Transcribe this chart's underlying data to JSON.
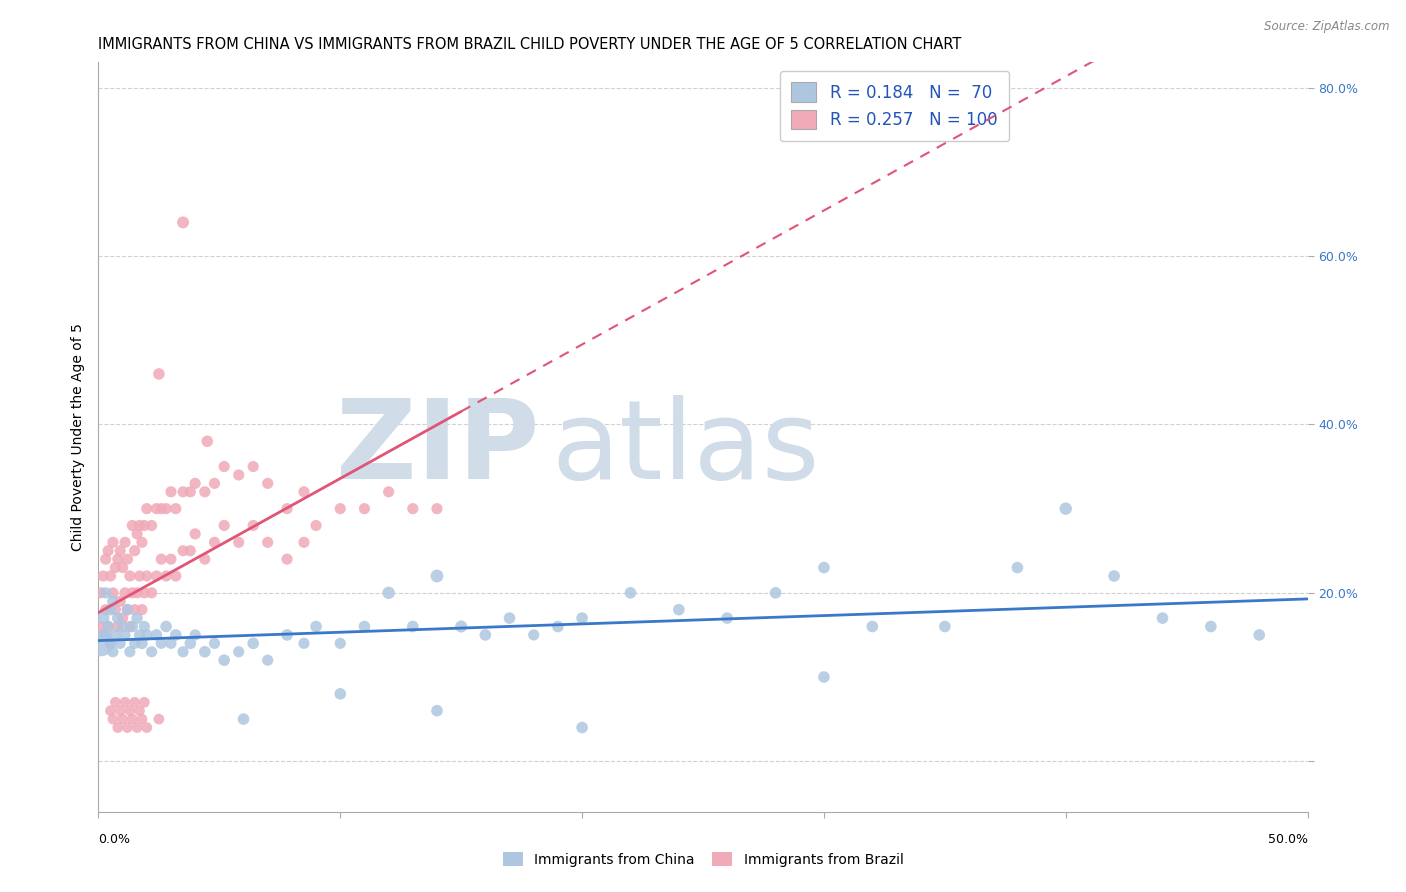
{
  "title": "IMMIGRANTS FROM CHINA VS IMMIGRANTS FROM BRAZIL CHILD POVERTY UNDER THE AGE OF 5 CORRELATION CHART",
  "source": "Source: ZipAtlas.com",
  "ylabel": "Child Poverty Under the Age of 5",
  "legend_label_china": "Immigrants from China",
  "legend_label_brazil": "Immigrants from Brazil",
  "color_china_fill": "#aec6e0",
  "color_brazil_fill": "#f0aab8",
  "color_china_line": "#3a78c9",
  "color_brazil_line": "#e05575",
  "R_china": 0.184,
  "N_china": 70,
  "R_brazil": 0.257,
  "N_brazil": 100,
  "xlim": [
    0.0,
    0.5
  ],
  "ylim": [
    -0.06,
    0.83
  ],
  "grid_color": "#cccccc",
  "bg_color": "#ffffff",
  "watermark_color": "#d0dce8",
  "title_fontsize": 10.5,
  "axis_label_fontsize": 10,
  "tick_fontsize": 9,
  "legend_fontsize": 12,
  "china_x": [
    0.001,
    0.002,
    0.003,
    0.003,
    0.004,
    0.005,
    0.005,
    0.006,
    0.006,
    0.007,
    0.008,
    0.009,
    0.01,
    0.011,
    0.012,
    0.013,
    0.014,
    0.015,
    0.016,
    0.017,
    0.018,
    0.019,
    0.02,
    0.022,
    0.024,
    0.026,
    0.028,
    0.03,
    0.032,
    0.035,
    0.038,
    0.04,
    0.044,
    0.048,
    0.052,
    0.058,
    0.064,
    0.07,
    0.078,
    0.085,
    0.09,
    0.1,
    0.11,
    0.12,
    0.13,
    0.14,
    0.15,
    0.16,
    0.17,
    0.18,
    0.19,
    0.2,
    0.22,
    0.24,
    0.26,
    0.28,
    0.3,
    0.32,
    0.35,
    0.38,
    0.4,
    0.42,
    0.44,
    0.46,
    0.48,
    0.3,
    0.2,
    0.14,
    0.1,
    0.06
  ],
  "china_y": [
    0.14,
    0.17,
    0.15,
    0.2,
    0.16,
    0.14,
    0.18,
    0.13,
    0.19,
    0.15,
    0.17,
    0.14,
    0.16,
    0.15,
    0.18,
    0.13,
    0.16,
    0.14,
    0.17,
    0.15,
    0.14,
    0.16,
    0.15,
    0.13,
    0.15,
    0.14,
    0.16,
    0.14,
    0.15,
    0.13,
    0.14,
    0.15,
    0.13,
    0.14,
    0.12,
    0.13,
    0.14,
    0.12,
    0.15,
    0.14,
    0.16,
    0.14,
    0.16,
    0.2,
    0.16,
    0.22,
    0.16,
    0.15,
    0.17,
    0.15,
    0.16,
    0.17,
    0.2,
    0.18,
    0.17,
    0.2,
    0.23,
    0.16,
    0.16,
    0.23,
    0.3,
    0.22,
    0.17,
    0.16,
    0.15,
    0.1,
    0.04,
    0.06,
    0.08,
    0.05
  ],
  "china_size": [
    350,
    80,
    70,
    65,
    70,
    65,
    70,
    65,
    70,
    65,
    70,
    65,
    70,
    65,
    70,
    65,
    70,
    65,
    70,
    65,
    70,
    65,
    70,
    65,
    70,
    65,
    70,
    65,
    70,
    65,
    70,
    65,
    70,
    65,
    70,
    65,
    70,
    65,
    70,
    65,
    70,
    65,
    70,
    80,
    70,
    85,
    75,
    70,
    70,
    65,
    70,
    70,
    70,
    70,
    70,
    70,
    70,
    70,
    70,
    70,
    80,
    70,
    70,
    70,
    70,
    70,
    70,
    70,
    70,
    70
  ],
  "brazil_x": [
    0.001,
    0.001,
    0.002,
    0.002,
    0.003,
    0.003,
    0.004,
    0.004,
    0.005,
    0.005,
    0.006,
    0.006,
    0.007,
    0.007,
    0.008,
    0.008,
    0.009,
    0.009,
    0.01,
    0.01,
    0.011,
    0.011,
    0.012,
    0.012,
    0.013,
    0.013,
    0.014,
    0.014,
    0.015,
    0.015,
    0.016,
    0.016,
    0.017,
    0.017,
    0.018,
    0.018,
    0.019,
    0.019,
    0.02,
    0.02,
    0.022,
    0.022,
    0.024,
    0.024,
    0.026,
    0.026,
    0.028,
    0.028,
    0.03,
    0.03,
    0.032,
    0.032,
    0.035,
    0.035,
    0.038,
    0.038,
    0.04,
    0.04,
    0.044,
    0.044,
    0.048,
    0.048,
    0.052,
    0.052,
    0.058,
    0.058,
    0.064,
    0.064,
    0.07,
    0.07,
    0.078,
    0.078,
    0.085,
    0.085,
    0.09,
    0.1,
    0.11,
    0.12,
    0.13,
    0.14,
    0.035,
    0.025,
    0.045,
    0.005,
    0.006,
    0.007,
    0.008,
    0.009,
    0.01,
    0.011,
    0.012,
    0.013,
    0.014,
    0.015,
    0.016,
    0.017,
    0.018,
    0.019,
    0.02,
    0.025
  ],
  "brazil_y": [
    0.16,
    0.2,
    0.15,
    0.22,
    0.18,
    0.24,
    0.16,
    0.25,
    0.14,
    0.22,
    0.2,
    0.26,
    0.18,
    0.23,
    0.16,
    0.24,
    0.19,
    0.25,
    0.17,
    0.23,
    0.2,
    0.26,
    0.18,
    0.24,
    0.16,
    0.22,
    0.2,
    0.28,
    0.18,
    0.25,
    0.2,
    0.27,
    0.22,
    0.28,
    0.18,
    0.26,
    0.2,
    0.28,
    0.22,
    0.3,
    0.2,
    0.28,
    0.22,
    0.3,
    0.24,
    0.3,
    0.22,
    0.3,
    0.24,
    0.32,
    0.22,
    0.3,
    0.25,
    0.32,
    0.25,
    0.32,
    0.27,
    0.33,
    0.24,
    0.32,
    0.26,
    0.33,
    0.28,
    0.35,
    0.26,
    0.34,
    0.28,
    0.35,
    0.26,
    0.33,
    0.24,
    0.3,
    0.26,
    0.32,
    0.28,
    0.3,
    0.3,
    0.32,
    0.3,
    0.3,
    0.64,
    0.46,
    0.38,
    0.06,
    0.05,
    0.07,
    0.04,
    0.06,
    0.05,
    0.07,
    0.04,
    0.06,
    0.05,
    0.07,
    0.04,
    0.06,
    0.05,
    0.07,
    0.04,
    0.05
  ],
  "brazil_size": [
    65,
    65,
    65,
    65,
    65,
    65,
    65,
    65,
    65,
    65,
    65,
    65,
    65,
    65,
    65,
    65,
    65,
    65,
    65,
    65,
    65,
    65,
    65,
    65,
    65,
    65,
    65,
    65,
    65,
    65,
    65,
    65,
    65,
    65,
    65,
    65,
    65,
    65,
    65,
    65,
    65,
    65,
    65,
    65,
    65,
    65,
    65,
    65,
    65,
    65,
    65,
    65,
    65,
    65,
    65,
    65,
    65,
    65,
    65,
    65,
    65,
    65,
    65,
    65,
    65,
    65,
    65,
    65,
    65,
    65,
    65,
    65,
    65,
    65,
    65,
    65,
    65,
    65,
    65,
    65,
    75,
    70,
    70,
    60,
    60,
    60,
    60,
    60,
    60,
    60,
    60,
    60,
    60,
    60,
    60,
    60,
    60,
    60,
    60,
    60
  ]
}
